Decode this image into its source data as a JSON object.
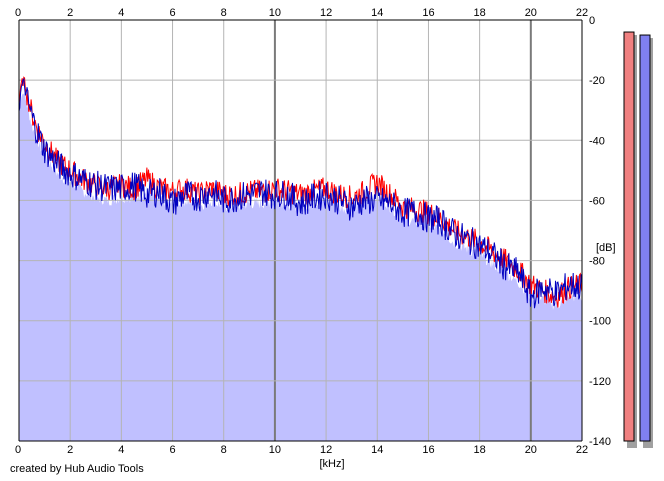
{
  "footer": {
    "credit": "created by Hub Audio Tools"
  },
  "colors": {
    "background": "#ffffff",
    "fill": "#c0c0ff",
    "left_channel": "#ff0000",
    "right_channel": "#0000c0",
    "grid": "#b4b4b4",
    "meter_left": "#f08080",
    "meter_right": "#8080f0"
  },
  "chart_data": {
    "type": "line",
    "title": "",
    "xlabel": "[kHz]",
    "ylabel": "[dB]",
    "xlim": [
      0,
      22
    ],
    "ylim": [
      -140,
      0
    ],
    "x_ticks": [
      "0",
      "2",
      "4",
      "6",
      "8",
      "10",
      "12",
      "14",
      "16",
      "18",
      "20",
      "22"
    ],
    "y_ticks": [
      "0",
      "-20",
      "-40",
      "-60",
      "-80",
      "-100",
      "-120",
      "-140"
    ],
    "grid": true,
    "legend": "none",
    "x": [
      0.0,
      0.1,
      0.2,
      0.3,
      0.5,
      0.7,
      1.0,
      1.5,
      2.0,
      2.5,
      3.0,
      3.5,
      4.0,
      4.5,
      5.0,
      5.5,
      6.0,
      6.5,
      7.0,
      7.5,
      8.0,
      8.5,
      9.0,
      9.5,
      10.0,
      10.5,
      11.0,
      11.5,
      12.0,
      12.5,
      13.0,
      13.5,
      14.0,
      14.5,
      15.0,
      15.5,
      16.0,
      16.5,
      17.0,
      17.5,
      18.0,
      18.5,
      19.0,
      19.5,
      20.0,
      20.5,
      21.0,
      21.5,
      22.0
    ],
    "series": [
      {
        "values": [
          -28,
          -21,
          -20,
          -24,
          -31,
          -36,
          -41,
          -47,
          -50,
          -53,
          -55,
          -56,
          -55,
          -56,
          -53,
          -56,
          -57,
          -56,
          -58,
          -56,
          -58,
          -58,
          -57,
          -57,
          -56,
          -57,
          -58,
          -57,
          -56,
          -58,
          -59,
          -57,
          -54,
          -58,
          -62,
          -63,
          -64,
          -66,
          -70,
          -72,
          -74,
          -77,
          -80,
          -83,
          -88,
          -90,
          -92,
          -89,
          -88
        ]
      },
      {
        "values": [
          -30,
          -22,
          -21,
          -26,
          -32,
          -37,
          -43,
          -48,
          -51,
          -53,
          -55,
          -56,
          -56,
          -55,
          -58,
          -57,
          -61,
          -58,
          -59,
          -57,
          -60,
          -59,
          -58,
          -57,
          -58,
          -58,
          -61,
          -59,
          -58,
          -60,
          -62,
          -60,
          -60,
          -61,
          -64,
          -64,
          -66,
          -67,
          -71,
          -73,
          -75,
          -78,
          -82,
          -84,
          -92,
          -89,
          -91,
          -88,
          -89
        ]
      }
    ],
    "level_meters": [
      {
        "level_db": -4
      },
      {
        "level_db": -5
      }
    ]
  }
}
